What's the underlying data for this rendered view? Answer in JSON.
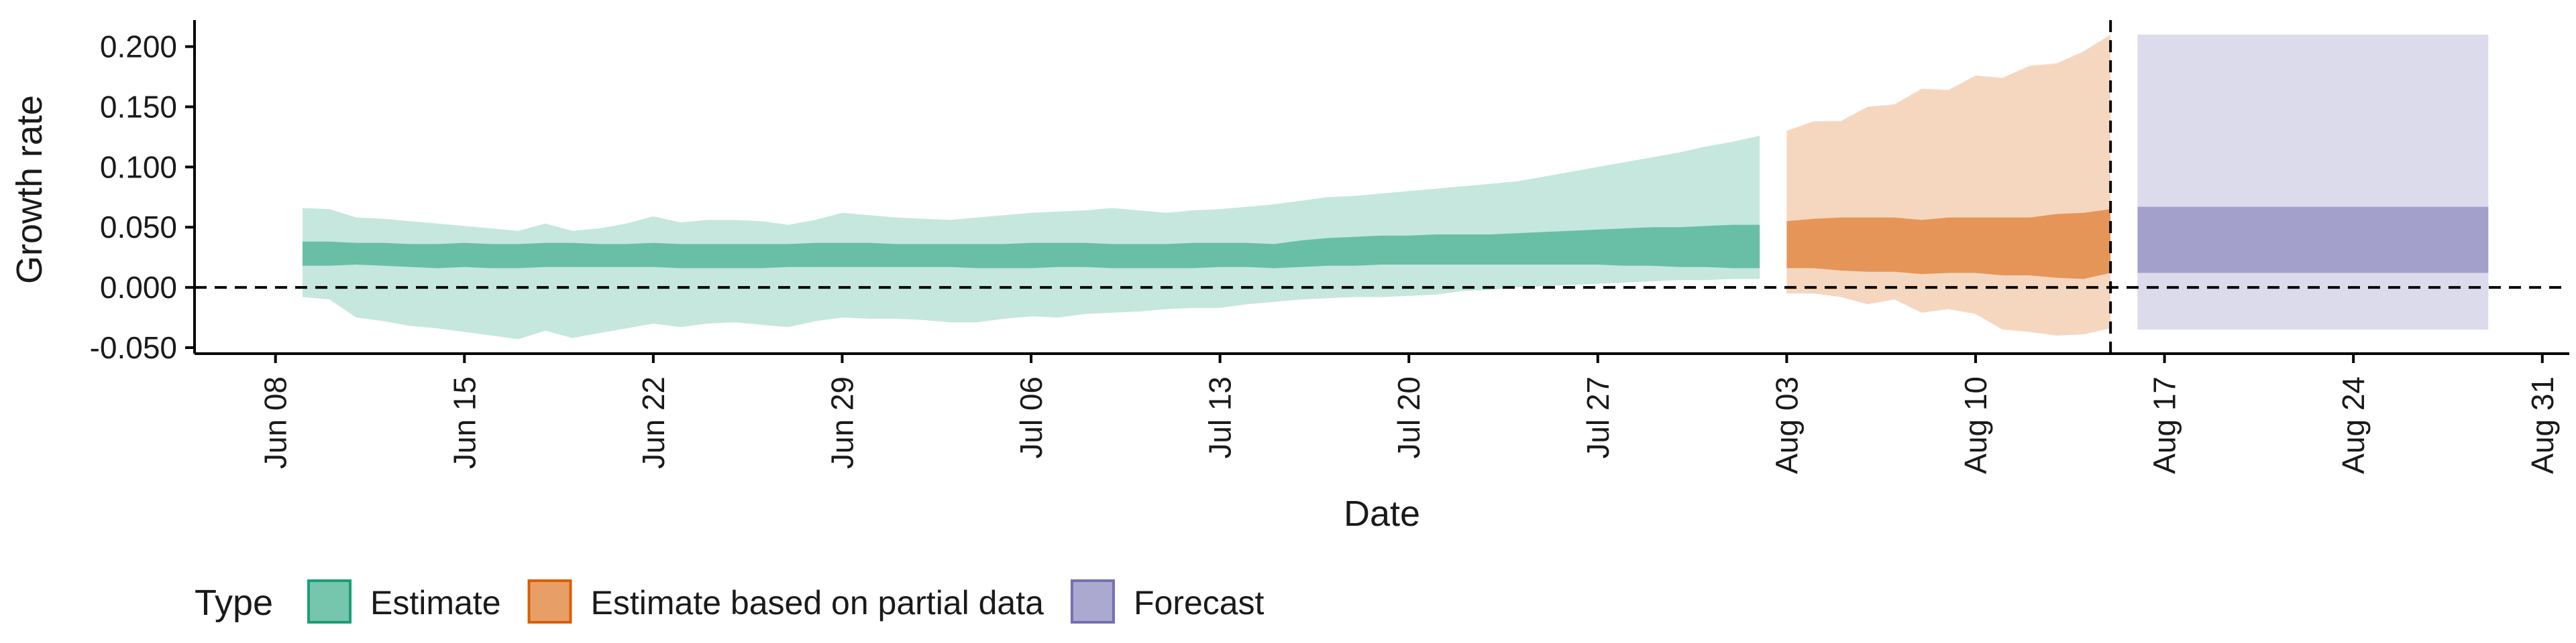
{
  "chart_data": {
    "type": "area",
    "xlabel": "Date",
    "ylabel": "Growth rate",
    "x_range": [
      "2020-06-05",
      "2020-09-01"
    ],
    "ylim": [
      -0.055,
      0.222
    ],
    "grid": false,
    "x_ticks": [
      {
        "date": "2020-06-08",
        "label": "Jun 08"
      },
      {
        "date": "2020-06-15",
        "label": "Jun 15"
      },
      {
        "date": "2020-06-22",
        "label": "Jun 22"
      },
      {
        "date": "2020-06-29",
        "label": "Jun 29"
      },
      {
        "date": "2020-07-06",
        "label": "Jul 06"
      },
      {
        "date": "2020-07-13",
        "label": "Jul 13"
      },
      {
        "date": "2020-07-20",
        "label": "Jul 20"
      },
      {
        "date": "2020-07-27",
        "label": "Jul 27"
      },
      {
        "date": "2020-08-03",
        "label": "Aug 03"
      },
      {
        "date": "2020-08-10",
        "label": "Aug 10"
      },
      {
        "date": "2020-08-17",
        "label": "Aug 17"
      },
      {
        "date": "2020-08-24",
        "label": "Aug 24"
      },
      {
        "date": "2020-08-31",
        "label": "Aug 31"
      }
    ],
    "y_ticks": [
      {
        "value": 0.2,
        "label": "0.200"
      },
      {
        "value": 0.15,
        "label": "0.150"
      },
      {
        "value": 0.1,
        "label": "0.100"
      },
      {
        "value": 0.05,
        "label": "0.050"
      },
      {
        "value": 0.0,
        "label": "0.000"
      },
      {
        "value": -0.05,
        "label": "-0.050"
      }
    ],
    "reference_lines": {
      "horizontal_y": 0.0,
      "vertical_date": "2020-08-15"
    },
    "legend": {
      "title": "Type",
      "placement": "bottom-left",
      "entries": [
        {
          "name": "Estimate",
          "fill": "#1b9e77",
          "border": "#1b9e77"
        },
        {
          "name": "Estimate based on partial data",
          "fill": "#d95f02",
          "border": "#d95f02"
        },
        {
          "name": "Forecast",
          "fill": "#7570b3",
          "border": "#7570b3"
        }
      ]
    },
    "series": [
      {
        "name": "Estimate",
        "color": "#1b9e77",
        "x": [
          "2020-06-09",
          "2020-06-10",
          "2020-06-11",
          "2020-06-12",
          "2020-06-13",
          "2020-06-14",
          "2020-06-15",
          "2020-06-16",
          "2020-06-17",
          "2020-06-18",
          "2020-06-19",
          "2020-06-20",
          "2020-06-21",
          "2020-06-22",
          "2020-06-23",
          "2020-06-24",
          "2020-06-25",
          "2020-06-26",
          "2020-06-27",
          "2020-06-28",
          "2020-06-29",
          "2020-06-30",
          "2020-07-01",
          "2020-07-02",
          "2020-07-03",
          "2020-07-04",
          "2020-07-05",
          "2020-07-06",
          "2020-07-07",
          "2020-07-08",
          "2020-07-09",
          "2020-07-10",
          "2020-07-11",
          "2020-07-12",
          "2020-07-13",
          "2020-07-14",
          "2020-07-15",
          "2020-07-16",
          "2020-07-17",
          "2020-07-18",
          "2020-07-19",
          "2020-07-20",
          "2020-07-21",
          "2020-07-22",
          "2020-07-23",
          "2020-07-24",
          "2020-07-25",
          "2020-07-26",
          "2020-07-27",
          "2020-07-28",
          "2020-07-29",
          "2020-07-30",
          "2020-07-31",
          "2020-08-01",
          "2020-08-02"
        ],
        "lower_90": [
          -0.008,
          -0.01,
          -0.025,
          -0.028,
          -0.032,
          -0.034,
          -0.037,
          -0.04,
          -0.043,
          -0.036,
          -0.042,
          -0.038,
          -0.034,
          -0.03,
          -0.033,
          -0.03,
          -0.029,
          -0.031,
          -0.033,
          -0.028,
          -0.025,
          -0.026,
          -0.026,
          -0.027,
          -0.029,
          -0.029,
          -0.026,
          -0.024,
          -0.025,
          -0.022,
          -0.021,
          -0.02,
          -0.018,
          -0.017,
          -0.017,
          -0.014,
          -0.012,
          -0.01,
          -0.009,
          -0.008,
          -0.008,
          -0.007,
          -0.006,
          -0.003,
          -0.002,
          0.0,
          0.001,
          0.002,
          0.003,
          0.004,
          0.005,
          0.006,
          0.006,
          0.007,
          0.007
        ],
        "lower_50": [
          0.018,
          0.018,
          0.019,
          0.018,
          0.017,
          0.016,
          0.017,
          0.016,
          0.016,
          0.017,
          0.017,
          0.017,
          0.017,
          0.017,
          0.016,
          0.016,
          0.016,
          0.016,
          0.017,
          0.017,
          0.017,
          0.017,
          0.017,
          0.017,
          0.017,
          0.016,
          0.016,
          0.016,
          0.017,
          0.017,
          0.016,
          0.016,
          0.016,
          0.016,
          0.017,
          0.017,
          0.016,
          0.017,
          0.018,
          0.018,
          0.019,
          0.019,
          0.019,
          0.019,
          0.019,
          0.019,
          0.019,
          0.019,
          0.019,
          0.018,
          0.018,
          0.017,
          0.017,
          0.016,
          0.016
        ],
        "upper_50": [
          0.038,
          0.038,
          0.037,
          0.037,
          0.036,
          0.036,
          0.037,
          0.036,
          0.036,
          0.037,
          0.037,
          0.036,
          0.036,
          0.037,
          0.036,
          0.036,
          0.036,
          0.036,
          0.036,
          0.037,
          0.037,
          0.037,
          0.036,
          0.036,
          0.036,
          0.036,
          0.036,
          0.037,
          0.037,
          0.037,
          0.036,
          0.036,
          0.036,
          0.037,
          0.037,
          0.037,
          0.036,
          0.039,
          0.041,
          0.042,
          0.043,
          0.043,
          0.044,
          0.044,
          0.044,
          0.045,
          0.046,
          0.047,
          0.048,
          0.049,
          0.05,
          0.05,
          0.051,
          0.052,
          0.052
        ],
        "upper_90": [
          0.066,
          0.065,
          0.058,
          0.057,
          0.055,
          0.053,
          0.051,
          0.049,
          0.047,
          0.053,
          0.047,
          0.049,
          0.053,
          0.059,
          0.054,
          0.056,
          0.056,
          0.055,
          0.052,
          0.056,
          0.062,
          0.06,
          0.058,
          0.057,
          0.056,
          0.058,
          0.06,
          0.062,
          0.063,
          0.064,
          0.066,
          0.064,
          0.062,
          0.064,
          0.065,
          0.067,
          0.069,
          0.072,
          0.075,
          0.076,
          0.078,
          0.08,
          0.082,
          0.084,
          0.086,
          0.088,
          0.092,
          0.096,
          0.1,
          0.104,
          0.108,
          0.112,
          0.117,
          0.121,
          0.126
        ]
      },
      {
        "name": "Estimate based on partial data",
        "color": "#d95f02",
        "x": [
          "2020-08-03",
          "2020-08-04",
          "2020-08-05",
          "2020-08-06",
          "2020-08-07",
          "2020-08-08",
          "2020-08-09",
          "2020-08-10",
          "2020-08-11",
          "2020-08-12",
          "2020-08-13",
          "2020-08-14",
          "2020-08-15"
        ],
        "lower_90": [
          -0.005,
          -0.005,
          -0.008,
          -0.014,
          -0.01,
          -0.021,
          -0.018,
          -0.022,
          -0.035,
          -0.037,
          -0.04,
          -0.039,
          -0.034
        ],
        "lower_50": [
          0.016,
          0.016,
          0.014,
          0.013,
          0.013,
          0.011,
          0.012,
          0.012,
          0.01,
          0.01,
          0.008,
          0.007,
          0.012
        ],
        "upper_50": [
          0.055,
          0.057,
          0.058,
          0.058,
          0.058,
          0.056,
          0.058,
          0.058,
          0.058,
          0.058,
          0.061,
          0.062,
          0.065
        ],
        "upper_90": [
          0.13,
          0.138,
          0.138,
          0.15,
          0.152,
          0.165,
          0.164,
          0.176,
          0.174,
          0.184,
          0.186,
          0.196,
          0.21
        ]
      },
      {
        "name": "Forecast",
        "color": "#7570b3",
        "x": [
          "2020-08-16",
          "2020-08-29"
        ],
        "lower_90": [
          -0.035,
          -0.035
        ],
        "lower_50": [
          0.012,
          0.012
        ],
        "upper_50": [
          0.067,
          0.067
        ],
        "upper_90": [
          0.21,
          0.21
        ]
      }
    ]
  }
}
